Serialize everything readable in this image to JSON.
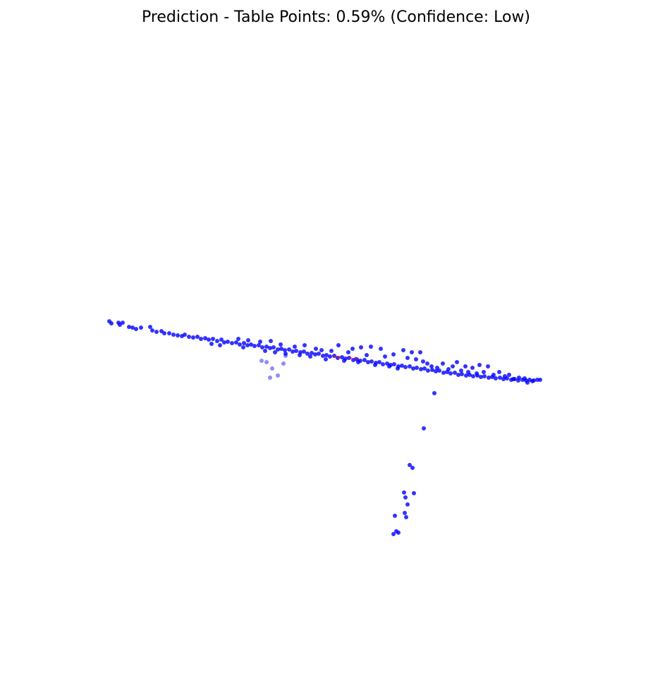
{
  "chart_data": {
    "type": "scatter",
    "title": "Prediction - Table Points: 0.59% (Confidence: Low)",
    "axes_visible": false,
    "grid": false,
    "legend": "none",
    "colors": {
      "non_table": "#0000ff",
      "table": "#ff0000"
    },
    "series": [
      {
        "class": "non_table",
        "color": "#0000ff",
        "points": [
          [
            155,
            456
          ],
          [
            158,
            459
          ],
          [
            168,
            458
          ],
          [
            170,
            461
          ],
          [
            174,
            458
          ],
          [
            183,
            464
          ],
          [
            188,
            465
          ],
          [
            193,
            467
          ],
          [
            200,
            465
          ],
          [
            213,
            464
          ],
          [
            216,
            469
          ],
          [
            222,
            471
          ],
          [
            229,
            470
          ],
          [
            233,
            473
          ],
          [
            240,
            473
          ],
          [
            246,
            475
          ],
          [
            252,
            476
          ],
          [
            258,
            477
          ],
          [
            262,
            475
          ],
          [
            268,
            478
          ],
          [
            274,
            479
          ],
          [
            280,
            478
          ],
          [
            285,
            481
          ],
          [
            291,
            480
          ],
          [
            296,
            482
          ],
          [
            302,
            481
          ],
          [
            308,
            484
          ],
          [
            314,
            482
          ],
          [
            318,
            486
          ],
          [
            323,
            485
          ],
          [
            329,
            487
          ],
          [
            335,
            486
          ],
          [
            340,
            489
          ],
          [
            346,
            487
          ],
          [
            351,
            490
          ],
          [
            356,
            489
          ],
          [
            361,
            491
          ],
          [
            367,
            490
          ],
          [
            372,
            493
          ],
          [
            378,
            492
          ],
          [
            383,
            494
          ],
          [
            388,
            493
          ],
          [
            394,
            496
          ],
          [
            399,
            495
          ],
          [
            404,
            497
          ],
          [
            410,
            496
          ],
          [
            415,
            499
          ],
          [
            420,
            498
          ],
          [
            426,
            500
          ],
          [
            431,
            499
          ],
          [
            436,
            502
          ],
          [
            442,
            501
          ],
          [
            447,
            503
          ],
          [
            452,
            502
          ],
          [
            458,
            505
          ],
          [
            463,
            504
          ],
          [
            468,
            506
          ],
          [
            474,
            505
          ],
          [
            479,
            508
          ],
          [
            485,
            507
          ],
          [
            490,
            509
          ],
          [
            495,
            508
          ],
          [
            501,
            511
          ],
          [
            506,
            510
          ],
          [
            511,
            512
          ],
          [
            517,
            511
          ],
          [
            522,
            514
          ],
          [
            527,
            513
          ],
          [
            533,
            515
          ],
          [
            538,
            514
          ],
          [
            543,
            517
          ],
          [
            549,
            516
          ],
          [
            554,
            518
          ],
          [
            559,
            517
          ],
          [
            565,
            520
          ],
          [
            570,
            519
          ],
          [
            575,
            521
          ],
          [
            581,
            520
          ],
          [
            586,
            523
          ],
          [
            591,
            522
          ],
          [
            597,
            524
          ],
          [
            602,
            523
          ],
          [
            607,
            526
          ],
          [
            613,
            525
          ],
          [
            618,
            527
          ],
          [
            623,
            526
          ],
          [
            629,
            529
          ],
          [
            634,
            528
          ],
          [
            639,
            530
          ],
          [
            645,
            529
          ],
          [
            650,
            532
          ],
          [
            655,
            531
          ],
          [
            661,
            533
          ],
          [
            666,
            532
          ],
          [
            671,
            534
          ],
          [
            677,
            533
          ],
          [
            682,
            535
          ],
          [
            687,
            534
          ],
          [
            693,
            536
          ],
          [
            698,
            535
          ],
          [
            703,
            537
          ],
          [
            709,
            536
          ],
          [
            714,
            538
          ],
          [
            719,
            537
          ],
          [
            725,
            539
          ],
          [
            730,
            538
          ],
          [
            735,
            540
          ],
          [
            741,
            539
          ],
          [
            746,
            540
          ],
          [
            751,
            539
          ],
          [
            757,
            540
          ],
          [
            762,
            539
          ],
          [
            766,
            539
          ],
          [
            300,
            488
          ],
          [
            312,
            490
          ],
          [
            338,
            481
          ],
          [
            345,
            493
          ],
          [
            352,
            483
          ],
          [
            369,
            485
          ],
          [
            376,
            498
          ],
          [
            384,
            484
          ],
          [
            390,
            500
          ],
          [
            398,
            489
          ],
          [
            405,
            502
          ],
          [
            418,
            492
          ],
          [
            425,
            504
          ],
          [
            432,
            490
          ],
          [
            440,
            506
          ],
          [
            448,
            495
          ],
          [
            456,
            497
          ],
          [
            462,
            510
          ],
          [
            470,
            498
          ],
          [
            480,
            490
          ],
          [
            488,
            512
          ],
          [
            494,
            500
          ],
          [
            500,
            495
          ],
          [
            508,
            514
          ],
          [
            512,
            493
          ],
          [
            520,
            504
          ],
          [
            526,
            492
          ],
          [
            532,
            518
          ],
          [
            540,
            495
          ],
          [
            546,
            506
          ],
          [
            552,
            520
          ],
          [
            558,
            503
          ],
          [
            564,
            523
          ],
          [
            572,
            497
          ],
          [
            578,
            508
          ],
          [
            584,
            500
          ],
          [
            590,
            510
          ],
          [
            596,
            500
          ],
          [
            600,
            513
          ],
          [
            606,
            516
          ],
          [
            612,
            520
          ],
          [
            620,
            522
          ],
          [
            628,
            516
          ],
          [
            636,
            524
          ],
          [
            642,
            520
          ],
          [
            648,
            514
          ],
          [
            654,
            526
          ],
          [
            660,
            520
          ],
          [
            664,
            528
          ],
          [
            670,
            522
          ],
          [
            676,
            530
          ],
          [
            680,
            518
          ],
          [
            686,
            528
          ],
          [
            692,
            520
          ],
          [
            700,
            532
          ],
          [
            708,
            528
          ],
          [
            716,
            534
          ],
          [
            722,
            532
          ],
          [
            728,
            538
          ],
          [
            736,
            536
          ],
          [
            744,
            537
          ],
          [
            748,
            543
          ],
          [
            755,
            541
          ],
          [
            616,
            558
          ],
          [
            601,
            608
          ],
          [
            581,
            660
          ],
          [
            585,
            664
          ],
          [
            573,
            699
          ],
          [
            587,
            700
          ],
          [
            575,
            706
          ],
          [
            578,
            716
          ],
          [
            574,
            728
          ],
          [
            576,
            734
          ],
          [
            560,
            732
          ],
          [
            562,
            754
          ],
          [
            565,
            756
          ],
          [
            558,
            758
          ]
        ]
      },
      {
        "class": "non_table_faded",
        "color": "#0000ff",
        "opacity": 0.45,
        "points": [
          [
            371,
            512
          ],
          [
            378,
            514
          ],
          [
            386,
            523
          ],
          [
            402,
            516
          ],
          [
            383,
            536
          ],
          [
            394,
            533
          ],
          [
            405,
            505
          ]
        ]
      },
      {
        "class": "table",
        "color": "#ff0000",
        "points": [
          [
            476,
            506
          ],
          [
            481,
            507
          ],
          [
            497,
            508
          ],
          [
            504,
            508
          ]
        ]
      }
    ]
  }
}
